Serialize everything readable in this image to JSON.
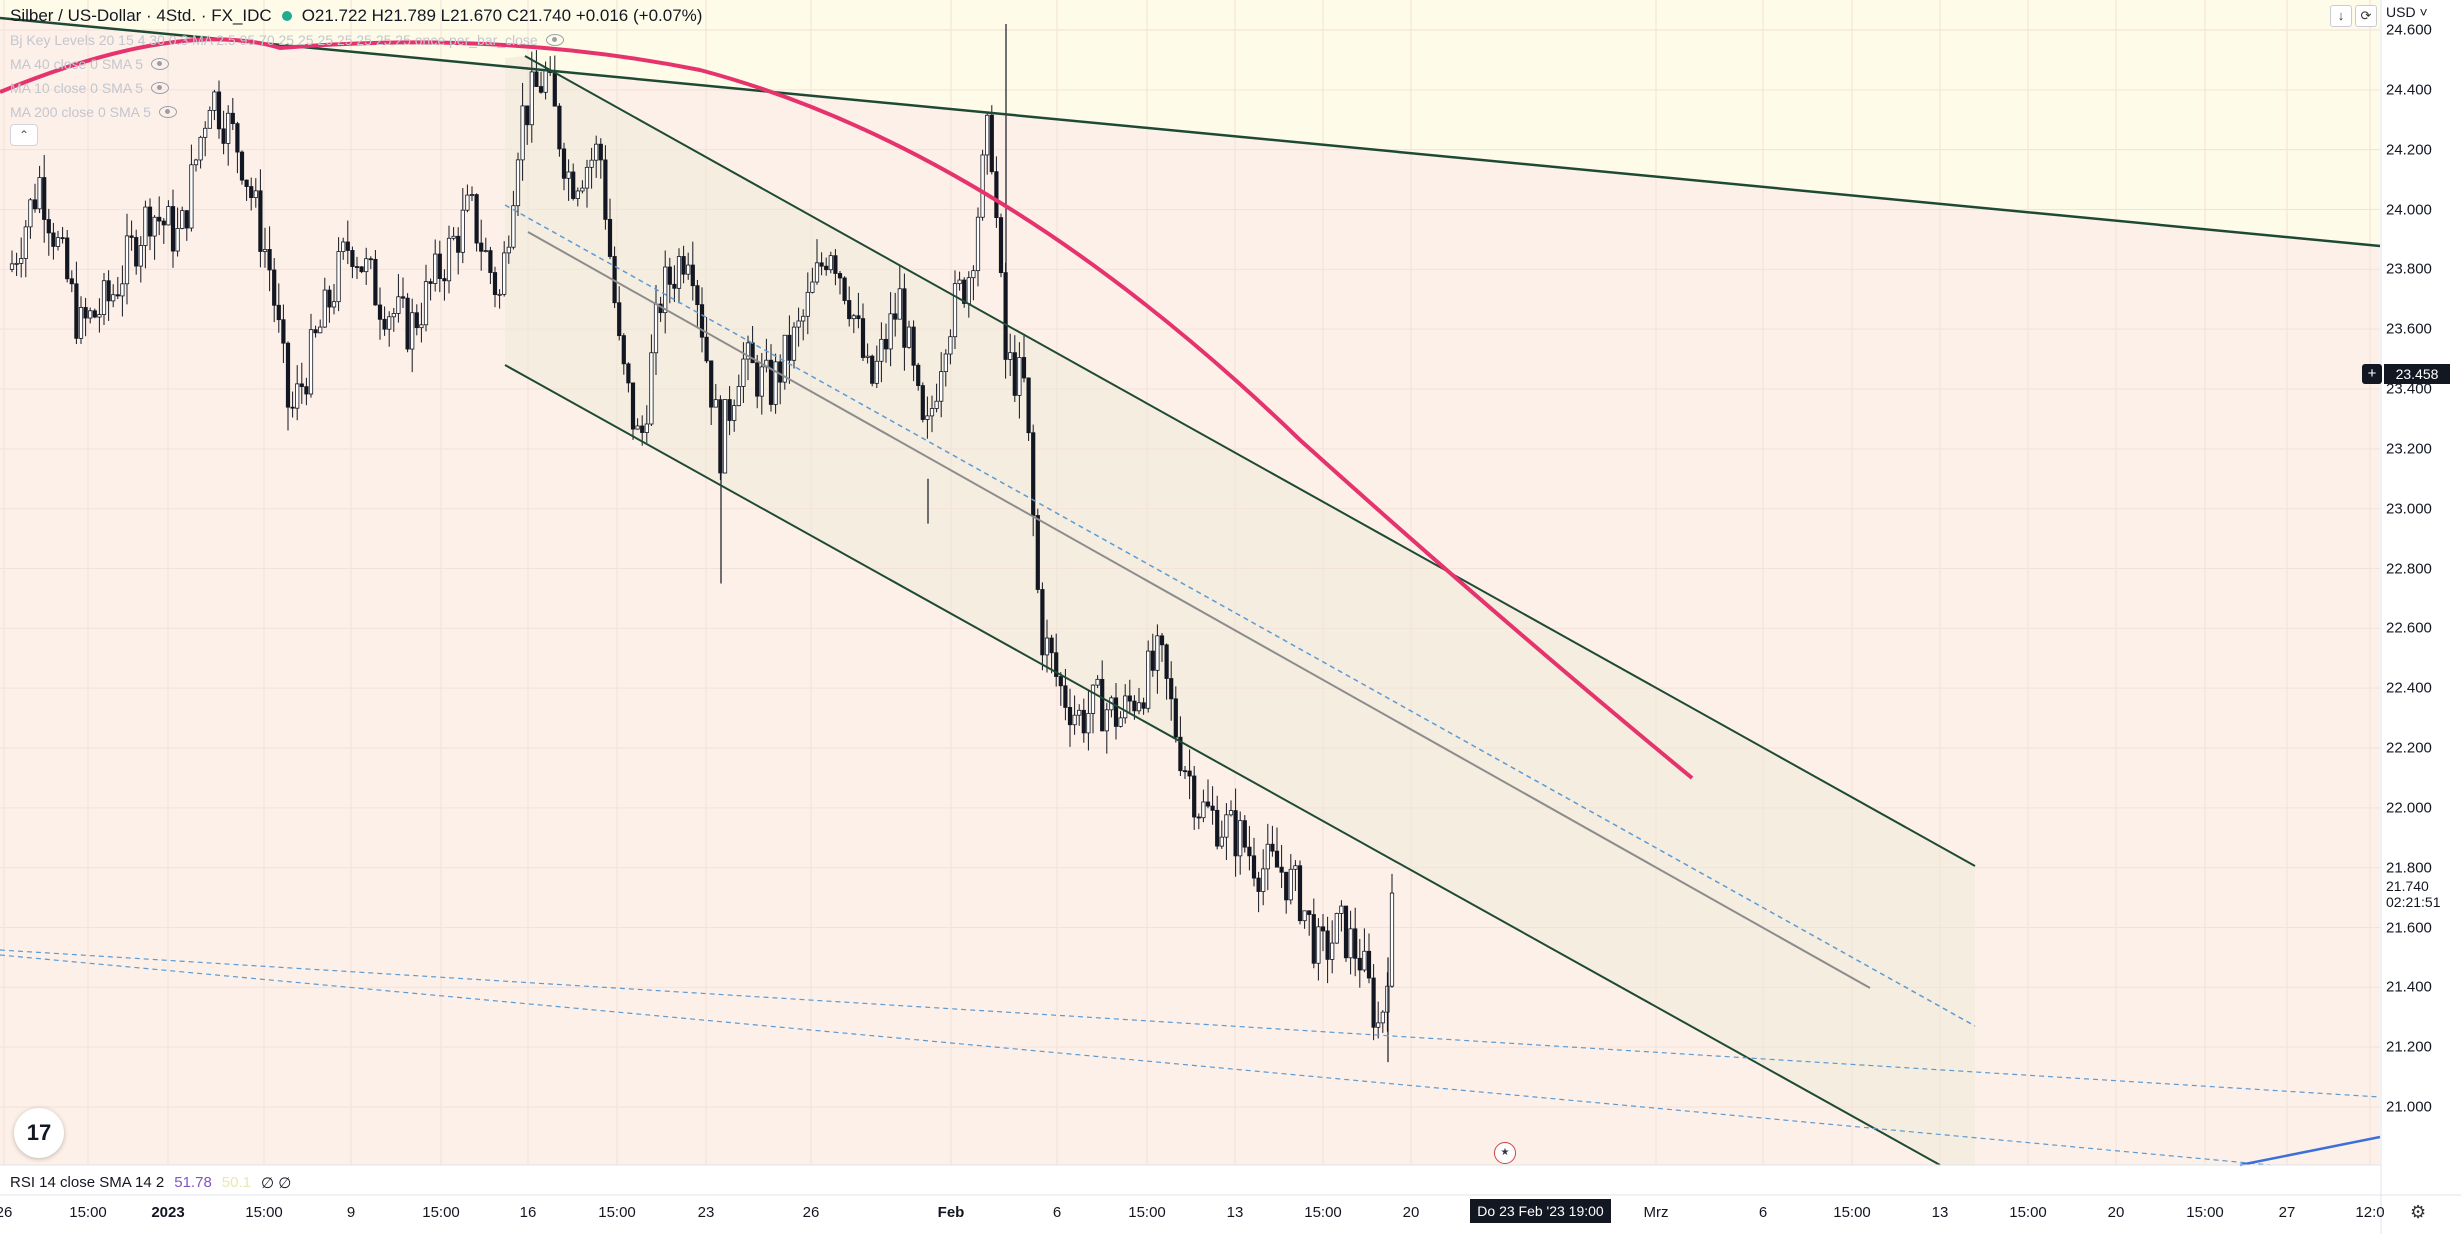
{
  "header": {
    "symbol": "Silber / US-Dollar · 4Std. · FX_IDC",
    "ohlc": "O21.722  H21.789  L21.670  C21.740  +0.016 (+0.07%)"
  },
  "indicators": [
    {
      "label": "Bj Key Levels 20 15 4 30 0.3 MA 2.5 95 70 25 25 25 25 25 25 25 once per_bar_close",
      "icon": "eye-icon"
    },
    {
      "label": "MA 40 close 0 SMA 5",
      "icon": "eye-icon"
    },
    {
      "label": "MA 10 close 0 SMA 5",
      "icon": "eye-icon"
    },
    {
      "label": "MA 200 close 0 SMA 5",
      "icon": "eye-icon"
    }
  ],
  "price_axis": {
    "currency": "USD",
    "ticks": [
      "24.600",
      "24.400",
      "24.200",
      "24.000",
      "23.800",
      "23.600",
      "23.400",
      "23.200",
      "23.000",
      "22.800",
      "22.600",
      "22.400",
      "22.200",
      "22.000",
      "21.800",
      "21.600",
      "21.400",
      "21.200",
      "21.000"
    ],
    "crosshair_price": "23.458",
    "last_price": "21.740",
    "countdown": "02:21:51"
  },
  "time_axis": {
    "ticks": [
      "26",
      "15:00",
      "2023",
      "15:00",
      "9",
      "15:00",
      "16",
      "15:00",
      "23",
      "26",
      "Feb",
      "6",
      "15:00",
      "13",
      "15:00",
      "20",
      "Mrz",
      "6",
      "15:00",
      "13",
      "15:00",
      "20",
      "15:00",
      "27",
      "12:0"
    ],
    "crosshair_date": "Do 23 Feb '23   19:00"
  },
  "rsi": {
    "label": "RSI 14 close SMA 14 2",
    "value": "51.78",
    "value2": "50.1",
    "empty": "∅ ∅"
  },
  "colors": {
    "background": "#fdf0e8",
    "upper_zone": "#fefbe8",
    "channel": "#1e4a35",
    "arc": "#e5336d",
    "dash": "#5b9bd5",
    "candle": "#131722"
  },
  "chart_data": {
    "type": "candlestick",
    "ylim": [
      20.85,
      24.65
    ],
    "price_ticks": [
      24.6,
      24.4,
      24.2,
      24.0,
      23.8,
      23.6,
      23.4,
      23.2,
      23.0,
      22.8,
      22.6,
      22.4,
      22.2,
      22.0,
      21.8,
      21.6,
      21.4,
      21.2,
      21.0
    ],
    "last_close": 21.74
  }
}
